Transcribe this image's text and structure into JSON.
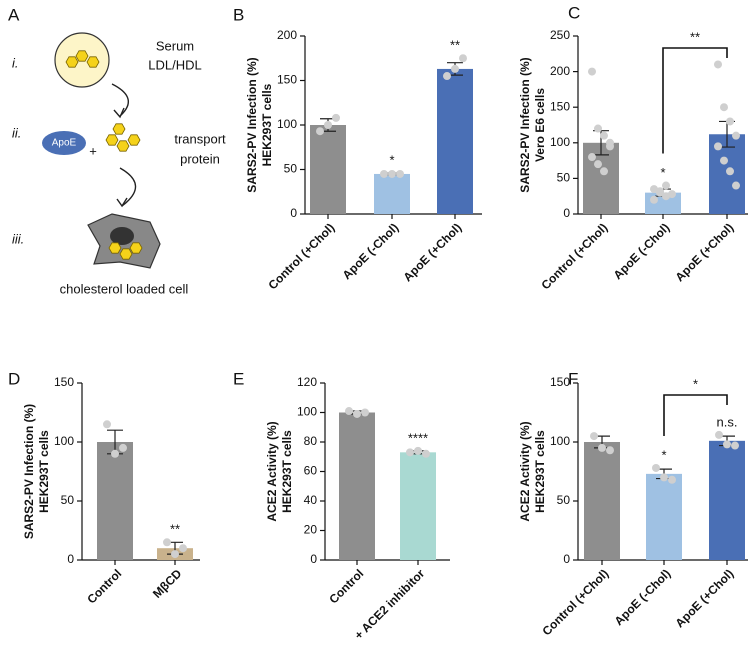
{
  "diagram": {
    "panel": "A",
    "steps": [
      "i.",
      "ii.",
      "iii."
    ],
    "serum": [
      "Serum",
      "LDL/HDL"
    ],
    "apoe": "ApoE",
    "plus": "+",
    "transport": [
      "transport",
      "protein"
    ],
    "cell": "cholesterol loaded cell"
  },
  "chart_data": [
    {
      "type": "bar",
      "panel": "B",
      "ylabel": [
        "SARS2-PV Infection (%)",
        "HEK293T cells"
      ],
      "ylim": [
        0,
        200
      ],
      "yticks": [
        0,
        50,
        100,
        150,
        200
      ],
      "categories": [
        "Control (+Chol)",
        "ApoE (-Chol)",
        "ApoE (+Chol)"
      ],
      "values": [
        100,
        45,
        163
      ],
      "errors": [
        7,
        1,
        7
      ],
      "points": [
        [
          93,
          100,
          108
        ],
        [
          45,
          45,
          45
        ],
        [
          155,
          163,
          175
        ]
      ],
      "colors": [
        "#8e8e8e",
        "#9fc1e3",
        "#4a6fb5"
      ],
      "significance": [
        null,
        "*",
        "**"
      ]
    },
    {
      "type": "bar",
      "panel": "C",
      "ylabel": [
        "SARS2-PV Infection (%)",
        "Vero E6 cells"
      ],
      "ylim": [
        0,
        250
      ],
      "yticks": [
        0,
        50,
        100,
        150,
        200,
        250
      ],
      "categories": [
        "Control (+Chol)",
        "ApoE (-Chol)",
        "ApoE (+Chol)"
      ],
      "values": [
        100,
        30,
        112
      ],
      "errors": [
        17,
        5,
        18
      ],
      "points": [
        [
          200,
          120,
          110,
          95,
          80,
          70,
          60,
          100
        ],
        [
          35,
          30,
          25,
          28,
          20,
          32,
          40
        ],
        [
          210,
          150,
          130,
          110,
          95,
          75,
          60,
          40
        ]
      ],
      "colors": [
        "#8e8e8e",
        "#9fc1e3",
        "#4a6fb5"
      ],
      "significance": [
        null,
        "*",
        null
      ],
      "brackets": [
        {
          "from": 1,
          "to": 2,
          "label": "**"
        }
      ]
    },
    {
      "type": "bar",
      "panel": "D",
      "ylabel": [
        "SARS2-PV Infection (%)",
        "HEK293T cells"
      ],
      "ylim": [
        0,
        150
      ],
      "yticks": [
        0,
        50,
        100,
        150
      ],
      "categories": [
        "Control",
        "MβCD"
      ],
      "values": [
        100,
        10
      ],
      "errors": [
        10,
        5
      ],
      "points": [
        [
          115,
          90,
          95
        ],
        [
          15,
          5,
          10
        ]
      ],
      "colors": [
        "#8e8e8e",
        "#c9b28c"
      ],
      "significance": [
        null,
        "**"
      ]
    },
    {
      "type": "bar",
      "panel": "E",
      "ylabel": [
        "ACE2 Activity (%)",
        "HEK293T cells"
      ],
      "ylim": [
        0,
        120
      ],
      "yticks": [
        0,
        20,
        40,
        60,
        80,
        100,
        120
      ],
      "categories": [
        "Control",
        "+ ACE2 inhibitor"
      ],
      "values": [
        100,
        73
      ],
      "errors": [
        1,
        1
      ],
      "points": [
        [
          101,
          99,
          100
        ],
        [
          73,
          74,
          72
        ]
      ],
      "colors": [
        "#8e8e8e",
        "#a9d9d2"
      ],
      "significance": [
        null,
        "****"
      ]
    },
    {
      "type": "bar",
      "panel": "F",
      "ylabel": [
        "ACE2 Activity (%)",
        "HEK293T cells"
      ],
      "ylim": [
        0,
        150
      ],
      "yticks": [
        0,
        50,
        100,
        150
      ],
      "categories": [
        "Control (+Chol)",
        "ApoE (-Chol)",
        "ApoE (+Chol)"
      ],
      "values": [
        100,
        73,
        101
      ],
      "errors": [
        5,
        4,
        4
      ],
      "points": [
        [
          105,
          95,
          93
        ],
        [
          78,
          70,
          68
        ],
        [
          106,
          98,
          97
        ]
      ],
      "colors": [
        "#8e8e8e",
        "#9fc1e3",
        "#4a6fb5"
      ],
      "significance": [
        null,
        "*",
        "n.s."
      ],
      "brackets": [
        {
          "from": 1,
          "to": 2,
          "label": "*"
        }
      ]
    }
  ]
}
